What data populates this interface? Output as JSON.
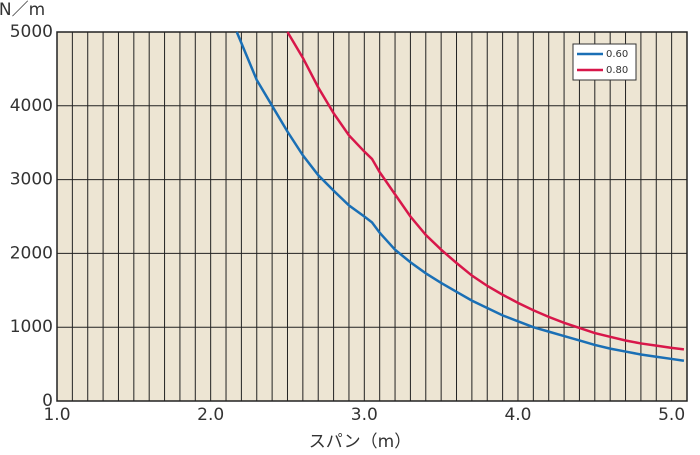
{
  "chart_data": {
    "type": "line",
    "x_label": "スパン（m）",
    "y_label": "N／m",
    "xlim": [
      1.0,
      5.1
    ],
    "ylim": [
      0,
      5000
    ],
    "xticks": [
      {
        "value": 1,
        "label": "1.0"
      },
      {
        "value": 2,
        "label": "2.0"
      },
      {
        "value": 3,
        "label": "3.0"
      },
      {
        "value": 4,
        "label": "4.0"
      },
      {
        "value": 5,
        "label": "5.0"
      }
    ],
    "xminorticks": [
      1.1,
      1.2,
      1.3,
      1.4,
      1.5,
      1.6,
      1.7,
      1.8,
      1.9,
      2.1,
      2.2,
      2.3,
      2.4,
      2.5,
      2.6,
      2.7,
      2.8,
      2.9,
      3.1,
      3.2,
      3.3,
      3.4,
      3.5,
      3.6,
      3.7,
      3.8,
      3.9,
      4.1,
      4.2,
      4.3,
      4.4,
      4.5,
      4.6,
      4.7,
      4.8,
      4.9
    ],
    "yticks": [
      0,
      1000,
      2000,
      3000,
      4000,
      5000
    ],
    "grid": true,
    "background": "#ede5d3",
    "legend_position": "upper-right",
    "series": [
      {
        "name": "0.60",
        "color": "#1a6fb5",
        "x": [
          2.17,
          2.3,
          2.4,
          2.5,
          2.6,
          2.7,
          2.8,
          2.9,
          3.0,
          3.05,
          3.1,
          3.2,
          3.3,
          3.4,
          3.5,
          3.6,
          3.7,
          3.8,
          3.9,
          4.0,
          4.1,
          4.2,
          4.3,
          4.4,
          4.5,
          4.6,
          4.7,
          4.8,
          4.9,
          5.0,
          5.08
        ],
        "values": [
          5000,
          4350,
          4000,
          3650,
          3330,
          3060,
          2850,
          2650,
          2500,
          2420,
          2280,
          2050,
          1880,
          1730,
          1600,
          1480,
          1360,
          1260,
          1160,
          1080,
          1000,
          940,
          880,
          820,
          760,
          710,
          670,
          630,
          600,
          570,
          545
        ]
      },
      {
        "name": "0.80",
        "color": "#d8174a",
        "x": [
          2.5,
          2.6,
          2.7,
          2.8,
          2.9,
          3.0,
          3.05,
          3.1,
          3.2,
          3.3,
          3.4,
          3.5,
          3.6,
          3.7,
          3.8,
          3.9,
          4.0,
          4.1,
          4.2,
          4.3,
          4.4,
          4.5,
          4.6,
          4.7,
          4.8,
          4.9,
          5.0,
          5.08
        ],
        "values": [
          5000,
          4650,
          4250,
          3900,
          3600,
          3380,
          3280,
          3100,
          2800,
          2500,
          2250,
          2050,
          1870,
          1700,
          1560,
          1440,
          1330,
          1230,
          1140,
          1060,
          990,
          920,
          870,
          820,
          780,
          750,
          720,
          700
        ]
      }
    ]
  }
}
